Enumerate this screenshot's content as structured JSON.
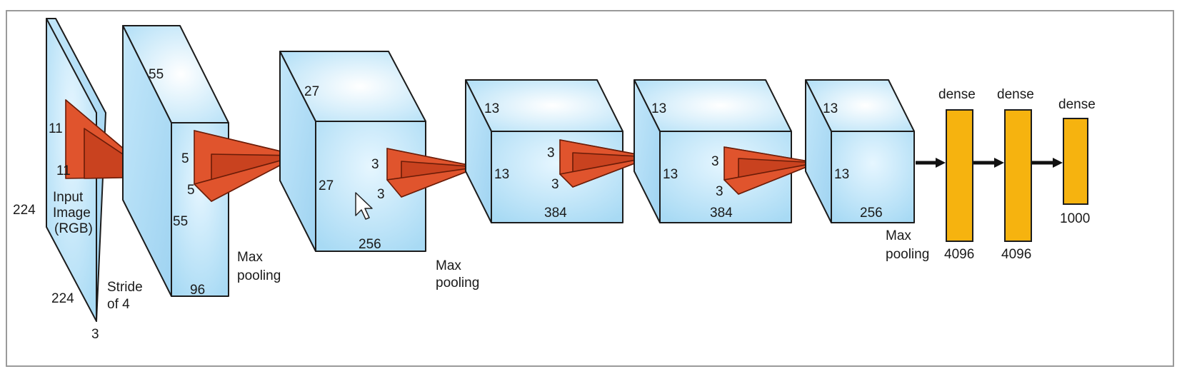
{
  "labels": {
    "input": {
      "height": "224",
      "width": "224",
      "depth": "3",
      "name_line1": "Input",
      "name_line2": "Image",
      "name_line3": "(RGB)",
      "kernel_h": "11",
      "kernel_w": "11",
      "stride_line1": "Stride",
      "stride_line2": "of 4"
    },
    "conv1": {
      "size_top": "55",
      "size_side": "55",
      "depth": "96",
      "kernel_h": "5",
      "kernel_w": "5"
    },
    "pool1": {
      "line1": "Max",
      "line2": "pooling"
    },
    "conv2": {
      "size_top": "27",
      "size_side": "27",
      "depth": "256",
      "kernel_h": "3",
      "kernel_w": "3"
    },
    "pool2": {
      "line1": "Max",
      "line2": "pooling"
    },
    "conv3": {
      "size_top": "13",
      "size_side": "13",
      "depth": "384",
      "kernel_h": "3",
      "kernel_w": "3"
    },
    "conv4": {
      "size_top": "13",
      "size_side": "13",
      "depth": "384",
      "kernel_h": "3",
      "kernel_w": "3"
    },
    "conv5": {
      "size_top": "13",
      "size_side": "13",
      "depth": "256"
    },
    "pool3": {
      "line1": "Max",
      "line2": "pooling"
    },
    "dense1": {
      "title": "dense",
      "units": "4096"
    },
    "dense2": {
      "title": "dense",
      "units": "4096"
    },
    "dense3": {
      "title": "dense",
      "units": "1000"
    }
  },
  "colors": {
    "block_face": "#b9e2f7",
    "block_edge": "#1c1c1c",
    "kernel": "#e0542d",
    "dense": "#f6b30f"
  }
}
